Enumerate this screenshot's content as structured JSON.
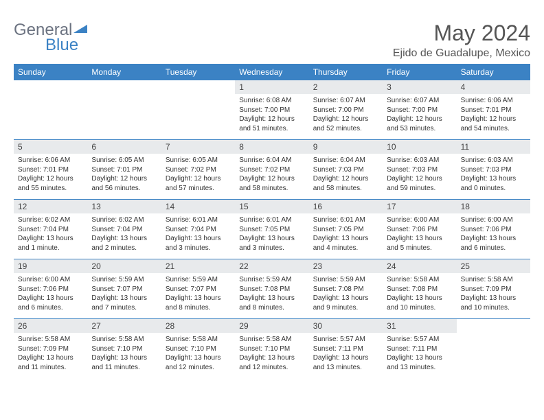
{
  "logo": {
    "general": "General",
    "blue": "Blue"
  },
  "title": "May 2024",
  "location": "Ejido de Guadalupe, Mexico",
  "days_of_week": [
    "Sunday",
    "Monday",
    "Tuesday",
    "Wednesday",
    "Thursday",
    "Friday",
    "Saturday"
  ],
  "colors": {
    "header_bg": "#3b82c4",
    "daynum_bg": "#e8eaec",
    "text": "#333333",
    "title": "#555555"
  },
  "weeks": [
    [
      {
        "n": "",
        "sunrise": "",
        "sunset": "",
        "daylight": ""
      },
      {
        "n": "",
        "sunrise": "",
        "sunset": "",
        "daylight": ""
      },
      {
        "n": "",
        "sunrise": "",
        "sunset": "",
        "daylight": ""
      },
      {
        "n": "1",
        "sunrise": "Sunrise: 6:08 AM",
        "sunset": "Sunset: 7:00 PM",
        "daylight": "Daylight: 12 hours and 51 minutes."
      },
      {
        "n": "2",
        "sunrise": "Sunrise: 6:07 AM",
        "sunset": "Sunset: 7:00 PM",
        "daylight": "Daylight: 12 hours and 52 minutes."
      },
      {
        "n": "3",
        "sunrise": "Sunrise: 6:07 AM",
        "sunset": "Sunset: 7:00 PM",
        "daylight": "Daylight: 12 hours and 53 minutes."
      },
      {
        "n": "4",
        "sunrise": "Sunrise: 6:06 AM",
        "sunset": "Sunset: 7:01 PM",
        "daylight": "Daylight: 12 hours and 54 minutes."
      }
    ],
    [
      {
        "n": "5",
        "sunrise": "Sunrise: 6:06 AM",
        "sunset": "Sunset: 7:01 PM",
        "daylight": "Daylight: 12 hours and 55 minutes."
      },
      {
        "n": "6",
        "sunrise": "Sunrise: 6:05 AM",
        "sunset": "Sunset: 7:01 PM",
        "daylight": "Daylight: 12 hours and 56 minutes."
      },
      {
        "n": "7",
        "sunrise": "Sunrise: 6:05 AM",
        "sunset": "Sunset: 7:02 PM",
        "daylight": "Daylight: 12 hours and 57 minutes."
      },
      {
        "n": "8",
        "sunrise": "Sunrise: 6:04 AM",
        "sunset": "Sunset: 7:02 PM",
        "daylight": "Daylight: 12 hours and 58 minutes."
      },
      {
        "n": "9",
        "sunrise": "Sunrise: 6:04 AM",
        "sunset": "Sunset: 7:03 PM",
        "daylight": "Daylight: 12 hours and 58 minutes."
      },
      {
        "n": "10",
        "sunrise": "Sunrise: 6:03 AM",
        "sunset": "Sunset: 7:03 PM",
        "daylight": "Daylight: 12 hours and 59 minutes."
      },
      {
        "n": "11",
        "sunrise": "Sunrise: 6:03 AM",
        "sunset": "Sunset: 7:03 PM",
        "daylight": "Daylight: 13 hours and 0 minutes."
      }
    ],
    [
      {
        "n": "12",
        "sunrise": "Sunrise: 6:02 AM",
        "sunset": "Sunset: 7:04 PM",
        "daylight": "Daylight: 13 hours and 1 minute."
      },
      {
        "n": "13",
        "sunrise": "Sunrise: 6:02 AM",
        "sunset": "Sunset: 7:04 PM",
        "daylight": "Daylight: 13 hours and 2 minutes."
      },
      {
        "n": "14",
        "sunrise": "Sunrise: 6:01 AM",
        "sunset": "Sunset: 7:04 PM",
        "daylight": "Daylight: 13 hours and 3 minutes."
      },
      {
        "n": "15",
        "sunrise": "Sunrise: 6:01 AM",
        "sunset": "Sunset: 7:05 PM",
        "daylight": "Daylight: 13 hours and 3 minutes."
      },
      {
        "n": "16",
        "sunrise": "Sunrise: 6:01 AM",
        "sunset": "Sunset: 7:05 PM",
        "daylight": "Daylight: 13 hours and 4 minutes."
      },
      {
        "n": "17",
        "sunrise": "Sunrise: 6:00 AM",
        "sunset": "Sunset: 7:06 PM",
        "daylight": "Daylight: 13 hours and 5 minutes."
      },
      {
        "n": "18",
        "sunrise": "Sunrise: 6:00 AM",
        "sunset": "Sunset: 7:06 PM",
        "daylight": "Daylight: 13 hours and 6 minutes."
      }
    ],
    [
      {
        "n": "19",
        "sunrise": "Sunrise: 6:00 AM",
        "sunset": "Sunset: 7:06 PM",
        "daylight": "Daylight: 13 hours and 6 minutes."
      },
      {
        "n": "20",
        "sunrise": "Sunrise: 5:59 AM",
        "sunset": "Sunset: 7:07 PM",
        "daylight": "Daylight: 13 hours and 7 minutes."
      },
      {
        "n": "21",
        "sunrise": "Sunrise: 5:59 AM",
        "sunset": "Sunset: 7:07 PM",
        "daylight": "Daylight: 13 hours and 8 minutes."
      },
      {
        "n": "22",
        "sunrise": "Sunrise: 5:59 AM",
        "sunset": "Sunset: 7:08 PM",
        "daylight": "Daylight: 13 hours and 8 minutes."
      },
      {
        "n": "23",
        "sunrise": "Sunrise: 5:59 AM",
        "sunset": "Sunset: 7:08 PM",
        "daylight": "Daylight: 13 hours and 9 minutes."
      },
      {
        "n": "24",
        "sunrise": "Sunrise: 5:58 AM",
        "sunset": "Sunset: 7:08 PM",
        "daylight": "Daylight: 13 hours and 10 minutes."
      },
      {
        "n": "25",
        "sunrise": "Sunrise: 5:58 AM",
        "sunset": "Sunset: 7:09 PM",
        "daylight": "Daylight: 13 hours and 10 minutes."
      }
    ],
    [
      {
        "n": "26",
        "sunrise": "Sunrise: 5:58 AM",
        "sunset": "Sunset: 7:09 PM",
        "daylight": "Daylight: 13 hours and 11 minutes."
      },
      {
        "n": "27",
        "sunrise": "Sunrise: 5:58 AM",
        "sunset": "Sunset: 7:10 PM",
        "daylight": "Daylight: 13 hours and 11 minutes."
      },
      {
        "n": "28",
        "sunrise": "Sunrise: 5:58 AM",
        "sunset": "Sunset: 7:10 PM",
        "daylight": "Daylight: 13 hours and 12 minutes."
      },
      {
        "n": "29",
        "sunrise": "Sunrise: 5:58 AM",
        "sunset": "Sunset: 7:10 PM",
        "daylight": "Daylight: 13 hours and 12 minutes."
      },
      {
        "n": "30",
        "sunrise": "Sunrise: 5:57 AM",
        "sunset": "Sunset: 7:11 PM",
        "daylight": "Daylight: 13 hours and 13 minutes."
      },
      {
        "n": "31",
        "sunrise": "Sunrise: 5:57 AM",
        "sunset": "Sunset: 7:11 PM",
        "daylight": "Daylight: 13 hours and 13 minutes."
      },
      {
        "n": "",
        "sunrise": "",
        "sunset": "",
        "daylight": ""
      }
    ]
  ]
}
